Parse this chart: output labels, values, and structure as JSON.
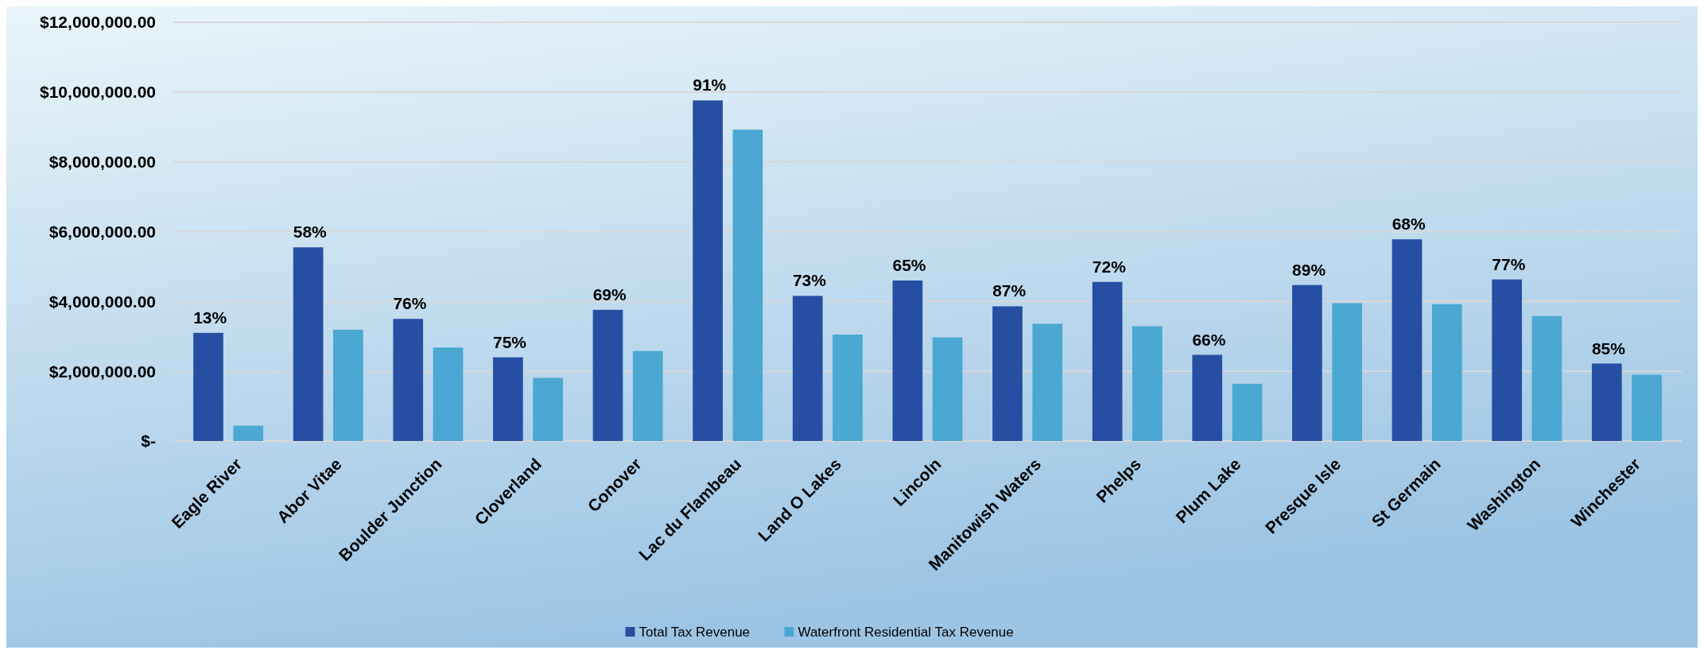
{
  "chart_data": {
    "type": "bar",
    "categories": [
      "Eagle River",
      "Abor Vitae",
      "Boulder Junction",
      "Cloverland",
      "Conover",
      "Lac du Flambeau",
      "Land O Lakes",
      "Lincoln",
      "Manitowish Waters",
      "Phelps",
      "Plum Lake",
      "Presque Isle",
      "St Germain",
      "Washington",
      "Winchester"
    ],
    "series": [
      {
        "name": "Total Tax Revenue",
        "color": "#264fa3",
        "values": [
          3100000,
          5550000,
          3500000,
          2400000,
          3760000,
          9760000,
          4160000,
          4600000,
          3860000,
          4560000,
          2470000,
          4470000,
          5780000,
          4630000,
          2220000
        ]
      },
      {
        "name": "Waterfront Residential Tax Revenue",
        "color": "#4aa8d3",
        "values": [
          440000,
          3190000,
          2680000,
          1810000,
          2580000,
          8920000,
          3050000,
          2970000,
          3360000,
          3290000,
          1640000,
          3950000,
          3920000,
          3580000,
          1900000
        ]
      }
    ],
    "ylim": [
      0,
      12000000
    ],
    "yticks": [
      {
        "value": 0,
        "label": "$-"
      },
      {
        "value": 2000000,
        "label": "$2,000,000.00"
      },
      {
        "value": 4000000,
        "label": "$4,000,000.00"
      },
      {
        "value": 6000000,
        "label": "$6,000,000.00"
      },
      {
        "value": 8000000,
        "label": "$8,000,000.00"
      },
      {
        "value": 10000000,
        "label": "$10,000,000.00"
      },
      {
        "value": 12000000,
        "label": "$12,000,000.00"
      }
    ],
    "grid": "y",
    "legend": "bottom",
    "annotations": [
      {
        "text": "13%",
        "x": "Eagle River",
        "y": 3100000
      },
      {
        "text": "58%",
        "x": "Abor Vitae",
        "y": 5550000
      },
      {
        "text": "76%",
        "x": "Boulder Junction",
        "y": 3500000
      },
      {
        "text": "75%",
        "x": "Cloverland",
        "y": 2400000
      },
      {
        "text": "69%",
        "x": "Conover",
        "y": 3760000
      },
      {
        "text": "91%",
        "x": "Lac du Flambeau",
        "y": 9760000
      },
      {
        "text": "73%",
        "x": "Land O Lakes",
        "y": 4160000
      },
      {
        "text": "65%",
        "x": "Lincoln",
        "y": 4600000
      },
      {
        "text": "87%",
        "x": "Manitowish Waters",
        "y": 3860000
      },
      {
        "text": "72%",
        "x": "Phelps",
        "y": 4560000
      },
      {
        "text": "66%",
        "x": "Plum Lake",
        "y": 2470000
      },
      {
        "text": "89%",
        "x": "Presque Isle",
        "y": 4470000
      },
      {
        "text": "68%",
        "x": "St Germain",
        "y": 5780000
      },
      {
        "text": "77%",
        "x": "Washington",
        "y": 4630000
      },
      {
        "text": "85%",
        "x": "Winchester",
        "y": 2220000
      }
    ]
  }
}
